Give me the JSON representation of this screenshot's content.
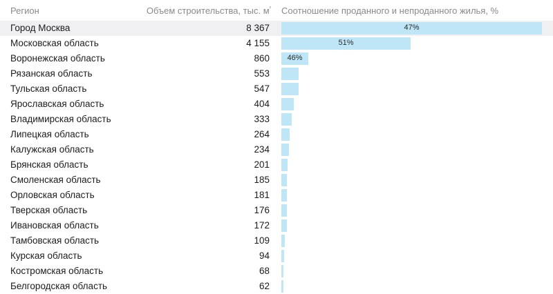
{
  "header": {
    "region": "Регион",
    "volume": "Объем строительства, тыс. м",
    "volume_sup": "²",
    "ratio": "Соотношение проданного и непроданного жилья, %"
  },
  "chart_data": {
    "type": "bar",
    "categories": [
      "Город Москва",
      "Московская область",
      "Воронежская область",
      "Рязанская область",
      "Тульская область",
      "Ярославская область",
      "Владимирская область",
      "Липецкая область",
      "Калужская область",
      "Брянская область",
      "Смоленская область",
      "Орловская область",
      "Тверская область",
      "Ивановская область",
      "Тамбовская область",
      "Курская область",
      "Костромская область",
      "Белгородская область"
    ],
    "values": [
      8367,
      4155,
      860,
      553,
      547,
      404,
      333,
      264,
      234,
      201,
      185,
      181,
      176,
      172,
      109,
      94,
      68,
      62
    ],
    "value_labels": [
      "8 367",
      "4 155",
      "860",
      "553",
      "547",
      "404",
      "333",
      "264",
      "234",
      "201",
      "185",
      "181",
      "176",
      "172",
      "109",
      "94",
      "68",
      "62"
    ],
    "bar_labels": [
      "47%",
      "51%",
      "46%",
      "",
      "",
      "",
      "",
      "",
      "",
      "",
      "",
      "",
      "",
      "",
      "",
      "",
      "",
      ""
    ],
    "xlim": [
      0,
      8367
    ],
    "bar_color": "#bfe6f7"
  }
}
